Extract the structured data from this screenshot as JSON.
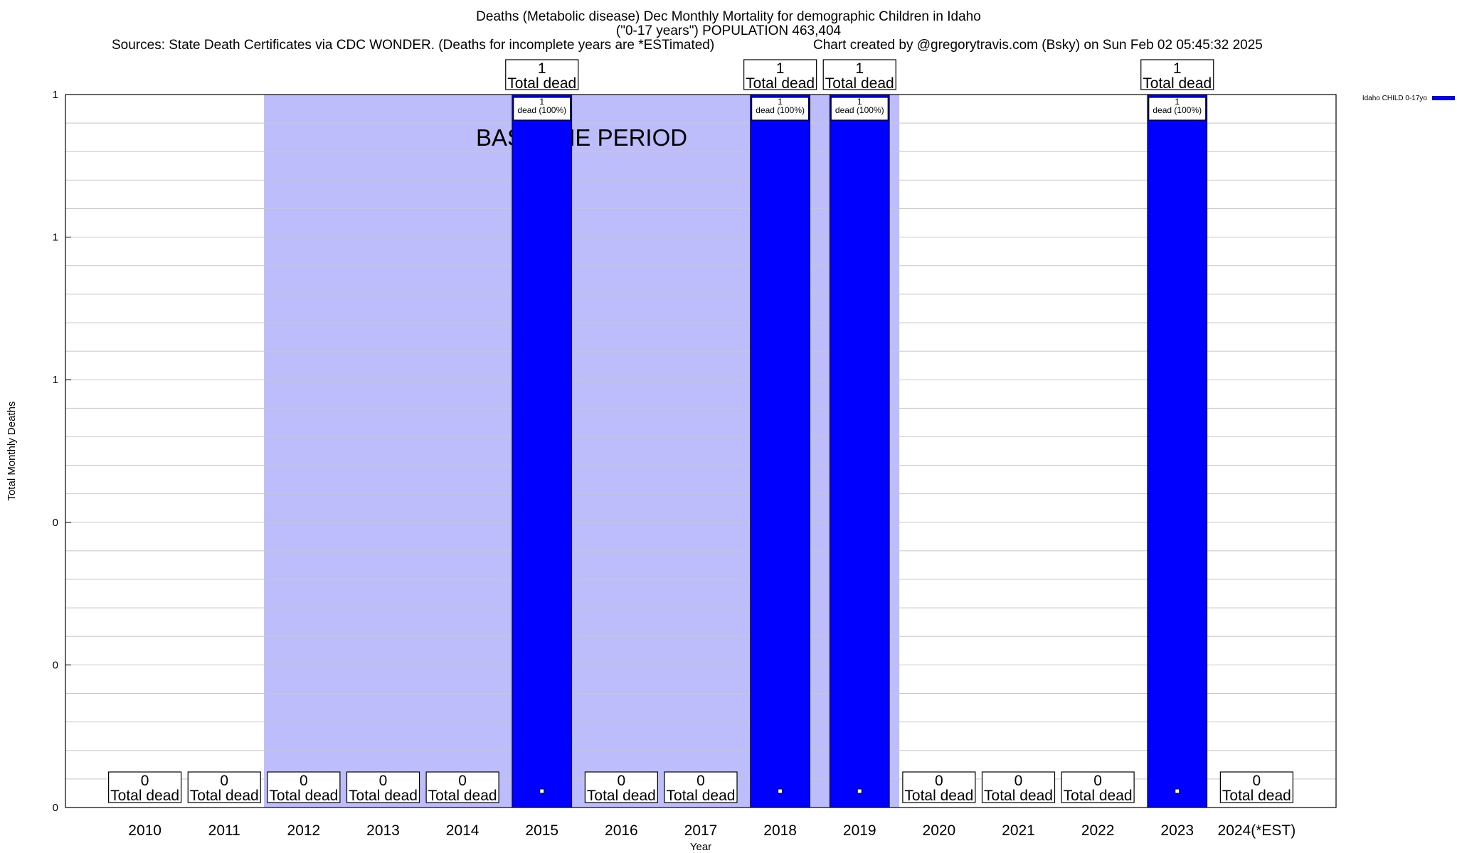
{
  "title_lines": [
    "Deaths (Metabolic disease) Dec Monthly Mortality for demographic Children in Idaho",
    "(\"0-17 years\") POPULATION 463,404"
  ],
  "subtitle_left": "Sources: State Death Certificates via CDC WONDER. (Deaths for incomplete years are *ESTimated)",
  "subtitle_right": "Chart created by @gregorytravis.com (Bsky) on Sun Feb 02 05:45:32 2025",
  "colors": {
    "bar": "#0000ff",
    "baseline": "#bdbdfb",
    "grid": "#c8c8c8"
  },
  "chart_data": {
    "type": "bar",
    "xlabel": "Year",
    "ylabel": "Total Monthly Deaths",
    "ylim": [
      0,
      1
    ],
    "y_tick_labels": [
      "0",
      "0",
      "0",
      "1",
      "1",
      "1"
    ],
    "baseline_label": "BASELINE PERIOD",
    "baseline_range": [
      "2012",
      "2019"
    ],
    "categories": [
      "2010",
      "2011",
      "2012",
      "2013",
      "2014",
      "2015",
      "2016",
      "2017",
      "2018",
      "2019",
      "2020",
      "2021",
      "2022",
      "2023",
      "2024(*EST)"
    ],
    "series": [
      {
        "name": "Idaho CHILD 0-17yo",
        "values": [
          0,
          0,
          0,
          0,
          0,
          1,
          0,
          0,
          1,
          1,
          0,
          0,
          0,
          1,
          0
        ]
      }
    ],
    "total_label_suffix": "Total dead",
    "bar_label_suffix": "dead (100%)",
    "legend_position": "right",
    "grid": true
  }
}
